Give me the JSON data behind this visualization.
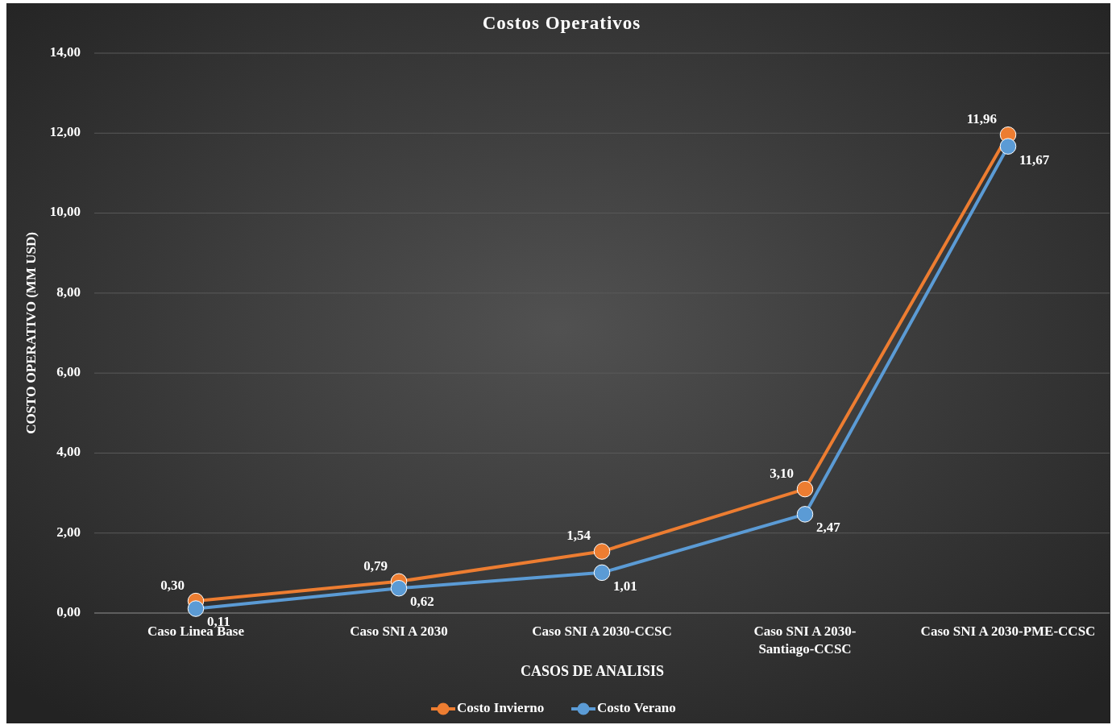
{
  "chart_data": {
    "type": "line",
    "title": "Costos Operativos",
    "xlabel": "CASOS DE ANALISIS",
    "ylabel": "COSTO OPERATIVO (MM USD)",
    "categories": [
      "Caso Linea Base",
      "Caso SNI A 2030",
      "Caso SNI A 2030-CCSC",
      "Caso SNI A 2030-Santiago-CCSC",
      "Caso SNI A 2030-PME-CCSC"
    ],
    "series": [
      {
        "name": "Costo Invierno",
        "color": "#ed7d31",
        "values": [
          0.3,
          0.79,
          1.54,
          3.1,
          11.96
        ],
        "value_labels": [
          "0,30",
          "0,79",
          "1,54",
          "3,10",
          "11,96"
        ]
      },
      {
        "name": "Costo Verano",
        "color": "#5b9bd5",
        "values": [
          0.11,
          0.62,
          1.01,
          2.47,
          11.67
        ],
        "value_labels": [
          "0,11",
          "0,62",
          "1,01",
          "2,47",
          "11,67"
        ]
      }
    ],
    "ylim": [
      0,
      14
    ],
    "yticks": [
      {
        "value": 0,
        "label": "0,00"
      },
      {
        "value": 2,
        "label": "2,00"
      },
      {
        "value": 4,
        "label": "4,00"
      },
      {
        "value": 6,
        "label": "6,00"
      },
      {
        "value": 8,
        "label": "8,00"
      },
      {
        "value": 10,
        "label": "10,00"
      },
      {
        "value": 12,
        "label": "12,00"
      },
      {
        "value": 14,
        "label": "14,00"
      }
    ],
    "grid": "y",
    "legend": "bottom",
    "marker": "circle",
    "line_style": "solid"
  }
}
